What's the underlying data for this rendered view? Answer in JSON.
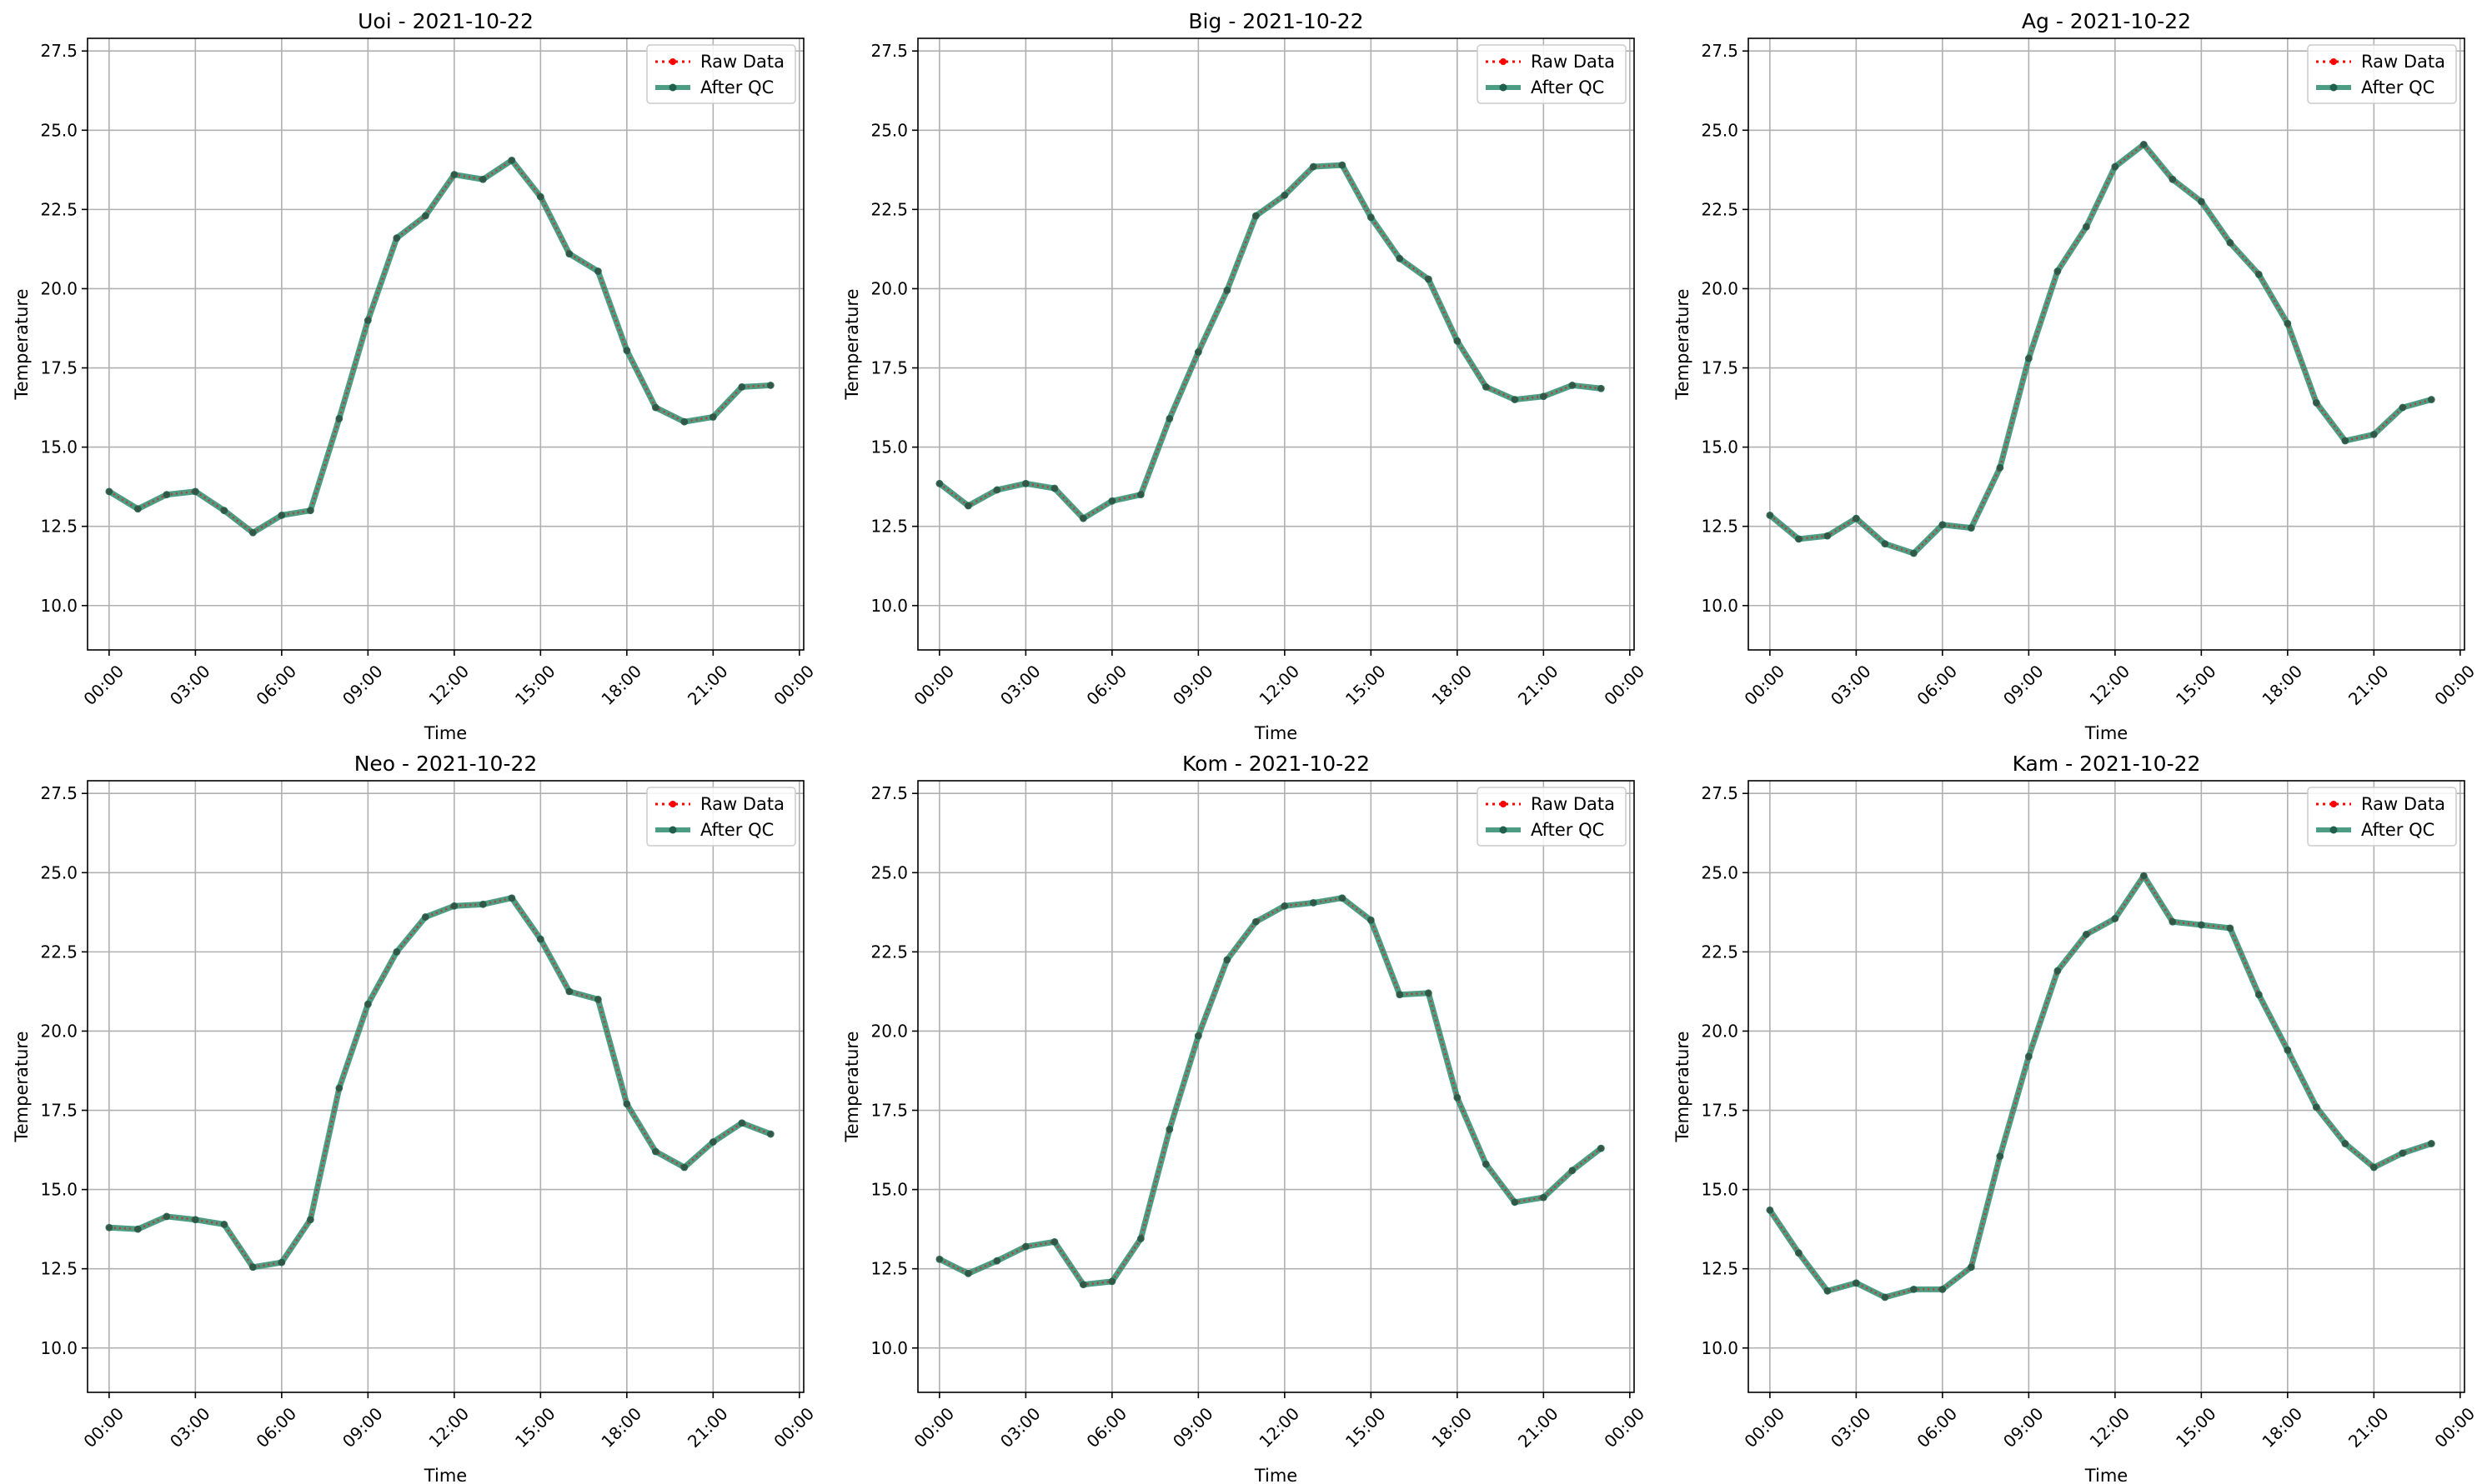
{
  "figure": {
    "legend_entries": [
      "Raw Data",
      "After QC"
    ],
    "colors": {
      "raw": "#ff0000",
      "qc": "#2e8b6e",
      "qc_marker": "#1f5f4c",
      "grid": "#b0b0b0",
      "axis": "#000000"
    }
  },
  "chart_data": [
    {
      "type": "line",
      "title": "Uoi - 2021-10-22",
      "xlabel": "Time",
      "ylabel": "Temperature",
      "ylim": [
        8.6,
        27.9
      ],
      "xlim": [
        -0.75,
        24.15
      ],
      "yticks": [
        10.0,
        12.5,
        15.0,
        17.5,
        20.0,
        22.5,
        25.0,
        27.5
      ],
      "ytick_labels": [
        "10.0",
        "12.5",
        "15.0",
        "17.5",
        "20.0",
        "22.5",
        "25.0",
        "27.5"
      ],
      "xticks": [
        0,
        3,
        6,
        9,
        12,
        15,
        18,
        21,
        24
      ],
      "xtick_labels": [
        "00:00",
        "03:00",
        "06:00",
        "09:00",
        "12:00",
        "15:00",
        "18:00",
        "21:00",
        "00:00"
      ],
      "grid": true,
      "legend": "top-right",
      "x": [
        "00:00",
        "01:00",
        "02:00",
        "03:00",
        "04:00",
        "05:00",
        "06:00",
        "07:00",
        "08:00",
        "09:00",
        "10:00",
        "11:00",
        "12:00",
        "13:00",
        "14:00",
        "15:00",
        "16:00",
        "17:00",
        "18:00",
        "19:00",
        "20:00",
        "21:00",
        "22:00",
        "23:00"
      ],
      "series": [
        {
          "name": "Raw Data",
          "values": [
            13.6,
            13.05,
            13.5,
            13.6,
            13.0,
            12.3,
            12.85,
            13.0,
            15.9,
            19.0,
            21.6,
            22.3,
            23.6,
            23.45,
            24.05,
            22.9,
            21.1,
            20.55,
            18.05,
            16.25,
            15.8,
            15.95,
            16.9,
            16.95
          ]
        },
        {
          "name": "After QC",
          "values": [
            13.6,
            13.05,
            13.5,
            13.6,
            13.0,
            12.3,
            12.85,
            13.0,
            15.9,
            19.0,
            21.6,
            22.3,
            23.6,
            23.45,
            24.05,
            22.9,
            21.1,
            20.55,
            18.05,
            16.25,
            15.8,
            15.95,
            16.9,
            16.95
          ]
        }
      ]
    },
    {
      "type": "line",
      "title": "Big - 2021-10-22",
      "xlabel": "Time",
      "ylabel": "Temperature",
      "ylim": [
        8.6,
        27.9
      ],
      "xlim": [
        -0.75,
        24.15
      ],
      "yticks": [
        10.0,
        12.5,
        15.0,
        17.5,
        20.0,
        22.5,
        25.0,
        27.5
      ],
      "ytick_labels": [
        "10.0",
        "12.5",
        "15.0",
        "17.5",
        "20.0",
        "22.5",
        "25.0",
        "27.5"
      ],
      "xticks": [
        0,
        3,
        6,
        9,
        12,
        15,
        18,
        21,
        24
      ],
      "xtick_labels": [
        "00:00",
        "03:00",
        "06:00",
        "09:00",
        "12:00",
        "15:00",
        "18:00",
        "21:00",
        "00:00"
      ],
      "grid": true,
      "legend": "top-right",
      "x": [
        "00:00",
        "01:00",
        "02:00",
        "03:00",
        "04:00",
        "05:00",
        "06:00",
        "07:00",
        "08:00",
        "09:00",
        "10:00",
        "11:00",
        "12:00",
        "13:00",
        "14:00",
        "15:00",
        "16:00",
        "17:00",
        "18:00",
        "19:00",
        "20:00",
        "21:00",
        "22:00",
        "23:00"
      ],
      "series": [
        {
          "name": "Raw Data",
          "values": [
            13.85,
            13.15,
            13.65,
            13.85,
            13.7,
            12.75,
            13.3,
            13.5,
            15.9,
            18.0,
            19.95,
            22.3,
            22.95,
            23.85,
            23.9,
            22.25,
            20.95,
            20.3,
            18.35,
            16.9,
            16.5,
            16.6,
            16.95,
            16.85
          ]
        },
        {
          "name": "After QC",
          "values": [
            13.85,
            13.15,
            13.65,
            13.85,
            13.7,
            12.75,
            13.3,
            13.5,
            15.9,
            18.0,
            19.95,
            22.3,
            22.95,
            23.85,
            23.9,
            22.25,
            20.95,
            20.3,
            18.35,
            16.9,
            16.5,
            16.6,
            16.95,
            16.85
          ]
        }
      ]
    },
    {
      "type": "line",
      "title": "Ag - 2021-10-22",
      "xlabel": "Time",
      "ylabel": "Temperature",
      "ylim": [
        8.6,
        27.9
      ],
      "xlim": [
        -0.75,
        24.15
      ],
      "yticks": [
        10.0,
        12.5,
        15.0,
        17.5,
        20.0,
        22.5,
        25.0,
        27.5
      ],
      "ytick_labels": [
        "10.0",
        "12.5",
        "15.0",
        "17.5",
        "20.0",
        "22.5",
        "25.0",
        "27.5"
      ],
      "xticks": [
        0,
        3,
        6,
        9,
        12,
        15,
        18,
        21,
        24
      ],
      "xtick_labels": [
        "00:00",
        "03:00",
        "06:00",
        "09:00",
        "12:00",
        "15:00",
        "18:00",
        "21:00",
        "00:00"
      ],
      "grid": true,
      "legend": "top-right",
      "x": [
        "00:00",
        "01:00",
        "02:00",
        "03:00",
        "04:00",
        "05:00",
        "06:00",
        "07:00",
        "08:00",
        "09:00",
        "10:00",
        "11:00",
        "12:00",
        "13:00",
        "14:00",
        "15:00",
        "16:00",
        "17:00",
        "18:00",
        "19:00",
        "20:00",
        "21:00",
        "22:00",
        "23:00"
      ],
      "series": [
        {
          "name": "Raw Data",
          "values": [
            12.85,
            12.1,
            12.2,
            12.75,
            11.95,
            11.65,
            12.55,
            12.45,
            14.35,
            17.8,
            20.55,
            21.95,
            23.85,
            24.55,
            23.45,
            22.75,
            21.45,
            20.45,
            18.9,
            16.4,
            15.2,
            15.4,
            16.25,
            16.5
          ]
        },
        {
          "name": "After QC",
          "values": [
            12.85,
            12.1,
            12.2,
            12.75,
            11.95,
            11.65,
            12.55,
            12.45,
            14.35,
            17.8,
            20.55,
            21.95,
            23.85,
            24.55,
            23.45,
            22.75,
            21.45,
            20.45,
            18.9,
            16.4,
            15.2,
            15.4,
            16.25,
            16.5
          ]
        }
      ]
    },
    {
      "type": "line",
      "title": "Neo - 2021-10-22",
      "xlabel": "Time",
      "ylabel": "Temperature",
      "ylim": [
        8.6,
        27.9
      ],
      "xlim": [
        -0.75,
        24.15
      ],
      "yticks": [
        10.0,
        12.5,
        15.0,
        17.5,
        20.0,
        22.5,
        25.0,
        27.5
      ],
      "ytick_labels": [
        "10.0",
        "12.5",
        "15.0",
        "17.5",
        "20.0",
        "22.5",
        "25.0",
        "27.5"
      ],
      "xticks": [
        0,
        3,
        6,
        9,
        12,
        15,
        18,
        21,
        24
      ],
      "xtick_labels": [
        "00:00",
        "03:00",
        "06:00",
        "09:00",
        "12:00",
        "15:00",
        "18:00",
        "21:00",
        "00:00"
      ],
      "grid": true,
      "legend": "top-right",
      "x": [
        "00:00",
        "01:00",
        "02:00",
        "03:00",
        "04:00",
        "05:00",
        "06:00",
        "07:00",
        "08:00",
        "09:00",
        "10:00",
        "11:00",
        "12:00",
        "13:00",
        "14:00",
        "15:00",
        "16:00",
        "17:00",
        "18:00",
        "19:00",
        "20:00",
        "21:00",
        "22:00",
        "23:00"
      ],
      "series": [
        {
          "name": "Raw Data",
          "values": [
            13.8,
            13.75,
            14.15,
            14.05,
            13.9,
            12.55,
            12.7,
            14.05,
            18.2,
            20.85,
            22.5,
            23.6,
            23.95,
            24.0,
            24.2,
            22.9,
            21.25,
            21.0,
            17.7,
            16.2,
            15.7,
            16.5,
            17.1,
            16.75
          ]
        },
        {
          "name": "After QC",
          "values": [
            13.8,
            13.75,
            14.15,
            14.05,
            13.9,
            12.55,
            12.7,
            14.05,
            18.2,
            20.85,
            22.5,
            23.6,
            23.95,
            24.0,
            24.2,
            22.9,
            21.25,
            21.0,
            17.7,
            16.2,
            15.7,
            16.5,
            17.1,
            16.75
          ]
        }
      ]
    },
    {
      "type": "line",
      "title": "Kom - 2021-10-22",
      "xlabel": "Time",
      "ylabel": "Temperature",
      "ylim": [
        8.6,
        27.9
      ],
      "xlim": [
        -0.75,
        24.15
      ],
      "yticks": [
        10.0,
        12.5,
        15.0,
        17.5,
        20.0,
        22.5,
        25.0,
        27.5
      ],
      "ytick_labels": [
        "10.0",
        "12.5",
        "15.0",
        "17.5",
        "20.0",
        "22.5",
        "25.0",
        "27.5"
      ],
      "xticks": [
        0,
        3,
        6,
        9,
        12,
        15,
        18,
        21,
        24
      ],
      "xtick_labels": [
        "00:00",
        "03:00",
        "06:00",
        "09:00",
        "12:00",
        "15:00",
        "18:00",
        "21:00",
        "00:00"
      ],
      "grid": true,
      "legend": "top-right",
      "x": [
        "00:00",
        "01:00",
        "02:00",
        "03:00",
        "04:00",
        "05:00",
        "06:00",
        "07:00",
        "08:00",
        "09:00",
        "10:00",
        "11:00",
        "12:00",
        "13:00",
        "14:00",
        "15:00",
        "16:00",
        "17:00",
        "18:00",
        "19:00",
        "20:00",
        "21:00",
        "22:00",
        "23:00"
      ],
      "series": [
        {
          "name": "Raw Data",
          "values": [
            12.8,
            12.35,
            12.75,
            13.2,
            13.35,
            12.0,
            12.1,
            13.45,
            16.9,
            19.85,
            22.25,
            23.45,
            23.95,
            24.05,
            24.2,
            23.5,
            21.15,
            21.2,
            17.9,
            15.8,
            14.6,
            14.75,
            15.6,
            16.3
          ]
        },
        {
          "name": "After QC",
          "values": [
            12.8,
            12.35,
            12.75,
            13.2,
            13.35,
            12.0,
            12.1,
            13.45,
            16.9,
            19.85,
            22.25,
            23.45,
            23.95,
            24.05,
            24.2,
            23.5,
            21.15,
            21.2,
            17.9,
            15.8,
            14.6,
            14.75,
            15.6,
            16.3
          ]
        }
      ]
    },
    {
      "type": "line",
      "title": "Kam - 2021-10-22",
      "xlabel": "Time",
      "ylabel": "Temperature",
      "ylim": [
        8.6,
        27.9
      ],
      "xlim": [
        -0.75,
        24.15
      ],
      "yticks": [
        10.0,
        12.5,
        15.0,
        17.5,
        20.0,
        22.5,
        25.0,
        27.5
      ],
      "ytick_labels": [
        "10.0",
        "12.5",
        "15.0",
        "17.5",
        "20.0",
        "22.5",
        "25.0",
        "27.5"
      ],
      "xticks": [
        0,
        3,
        6,
        9,
        12,
        15,
        18,
        21,
        24
      ],
      "xtick_labels": [
        "00:00",
        "03:00",
        "06:00",
        "09:00",
        "12:00",
        "15:00",
        "18:00",
        "21:00",
        "00:00"
      ],
      "grid": true,
      "legend": "top-right",
      "x": [
        "00:00",
        "01:00",
        "02:00",
        "03:00",
        "04:00",
        "05:00",
        "06:00",
        "07:00",
        "08:00",
        "09:00",
        "10:00",
        "11:00",
        "12:00",
        "13:00",
        "14:00",
        "15:00",
        "16:00",
        "17:00",
        "18:00",
        "19:00",
        "20:00",
        "21:00",
        "22:00",
        "23:00"
      ],
      "series": [
        {
          "name": "Raw Data",
          "values": [
            14.35,
            13.0,
            11.8,
            12.05,
            11.6,
            11.85,
            11.85,
            12.55,
            16.05,
            19.2,
            21.9,
            23.05,
            23.55,
            24.9,
            23.45,
            23.35,
            23.25,
            21.15,
            19.4,
            17.6,
            16.45,
            15.7,
            16.15,
            16.45
          ]
        },
        {
          "name": "After QC",
          "values": [
            14.35,
            13.0,
            11.8,
            12.05,
            11.6,
            11.85,
            11.85,
            12.55,
            16.05,
            19.2,
            21.9,
            23.05,
            23.55,
            24.9,
            23.45,
            23.35,
            23.25,
            21.15,
            19.4,
            17.6,
            16.45,
            15.7,
            16.15,
            16.45
          ]
        }
      ]
    }
  ]
}
